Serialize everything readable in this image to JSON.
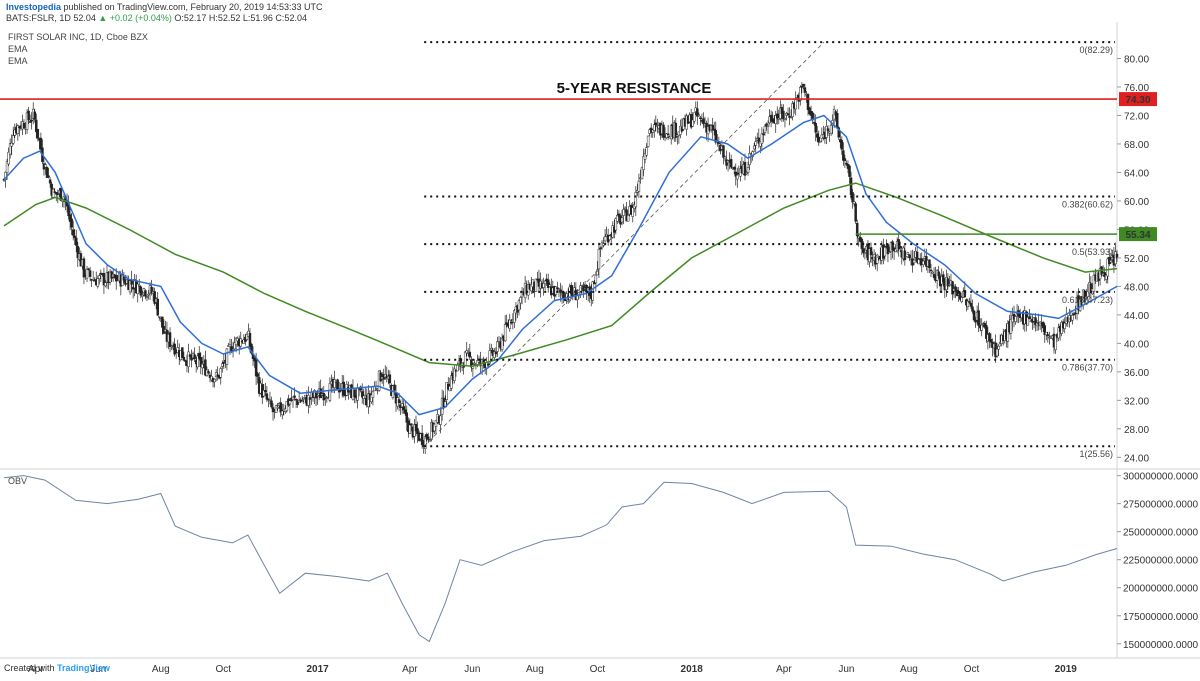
{
  "header": {
    "brand": "Investopedia",
    "published": "published on TradingView.com, February 20, 2019 14:53:33 UTC",
    "quote_prefix": "BATS:FSLR, 1D 52.04",
    "change": "▲ +0.02 (+0.04%)",
    "ohlc": "O:52.17 H:52.52 L:51.96 C:52.04"
  },
  "legend": {
    "symbol": "FIRST SOLAR INC, 1D, Cboe BZX",
    "ema1": "EMA",
    "ema2": "EMA",
    "obv": "OBV"
  },
  "annotation": "5-YEAR RESISTANCE",
  "footer": {
    "created": "Created with",
    "brand": "TradingView"
  },
  "colors": {
    "resistance": "#e02020",
    "ema_fast": "#2f6fd6",
    "ema_slow": "#3f8a22",
    "support_box": "#3f8a22",
    "candle": "#222222",
    "obv": "#6e84a6"
  },
  "chart_data": {
    "type": "line",
    "price_axis": {
      "range": [
        22.5,
        84
      ],
      "ticks": [
        24,
        28,
        32,
        36,
        40,
        44,
        48,
        52,
        56,
        60,
        64,
        68,
        72,
        76,
        80
      ]
    },
    "obv_axis": {
      "range": [
        140000000,
        305000000
      ],
      "ticks": [
        150000000,
        175000000,
        200000000,
        225000000,
        250000000,
        275000000,
        300000000
      ],
      "tick_labels": [
        "150000000.0000",
        "175000000.0000",
        "200000000.0000",
        "225000000.0000",
        "250000000.0000",
        "275000000.0000",
        "300000000.0000"
      ]
    },
    "x_axis": {
      "range": [
        "2016-03-01",
        "2019-02-20"
      ],
      "labels": [
        {
          "date": "2016-04-01",
          "text": "Apr"
        },
        {
          "date": "2016-06-01",
          "text": "Jun"
        },
        {
          "date": "2016-08-01",
          "text": "Aug"
        },
        {
          "date": "2016-10-01",
          "text": "Oct"
        },
        {
          "date": "2017-01-01",
          "text": "2017"
        },
        {
          "date": "2017-04-01",
          "text": "Apr"
        },
        {
          "date": "2017-06-01",
          "text": "Jun"
        },
        {
          "date": "2017-08-01",
          "text": "Aug"
        },
        {
          "date": "2017-10-01",
          "text": "Oct"
        },
        {
          "date": "2018-01-01",
          "text": "2018"
        },
        {
          "date": "2018-04-01",
          "text": "Apr"
        },
        {
          "date": "2018-06-01",
          "text": "Jun"
        },
        {
          "date": "2018-08-01",
          "text": "Aug"
        },
        {
          "date": "2018-10-01",
          "text": "Oct"
        },
        {
          "date": "2019-01-01",
          "text": "2019"
        }
      ]
    },
    "price_close": [
      [
        "2016-03-01",
        63
      ],
      [
        "2016-03-10",
        70
      ],
      [
        "2016-03-20",
        71
      ],
      [
        "2016-03-30",
        72
      ],
      [
        "2016-04-08",
        66
      ],
      [
        "2016-04-18",
        61
      ],
      [
        "2016-04-28",
        61
      ],
      [
        "2016-05-08",
        55
      ],
      [
        "2016-05-18",
        50
      ],
      [
        "2016-05-28",
        49
      ],
      [
        "2016-06-10",
        49
      ],
      [
        "2016-06-25",
        49
      ],
      [
        "2016-07-10",
        48
      ],
      [
        "2016-07-25",
        47
      ],
      [
        "2016-08-05",
        41
      ],
      [
        "2016-08-25",
        38
      ],
      [
        "2016-09-10",
        37
      ],
      [
        "2016-09-25",
        35
      ],
      [
        "2016-10-10",
        40
      ],
      [
        "2016-10-25",
        41
      ],
      [
        "2016-11-05",
        34
      ],
      [
        "2016-11-20",
        30
      ],
      [
        "2016-12-05",
        32
      ],
      [
        "2016-12-20",
        32
      ],
      [
        "2017-01-05",
        33
      ],
      [
        "2017-01-20",
        34
      ],
      [
        "2017-02-05",
        33
      ],
      [
        "2017-02-20",
        32
      ],
      [
        "2017-03-05",
        36
      ],
      [
        "2017-03-20",
        32
      ],
      [
        "2017-04-01",
        28
      ],
      [
        "2017-04-15",
        26.5
      ],
      [
        "2017-04-28",
        29
      ],
      [
        "2017-05-10",
        35
      ],
      [
        "2017-05-25",
        38
      ],
      [
        "2017-06-10",
        37
      ],
      [
        "2017-06-25",
        39
      ],
      [
        "2017-07-10",
        44
      ],
      [
        "2017-07-25",
        48
      ],
      [
        "2017-08-10",
        48
      ],
      [
        "2017-08-25",
        47
      ],
      [
        "2017-09-10",
        47
      ],
      [
        "2017-09-25",
        47
      ],
      [
        "2017-10-05",
        54
      ],
      [
        "2017-10-20",
        57
      ],
      [
        "2017-11-05",
        59
      ],
      [
        "2017-11-20",
        70
      ],
      [
        "2017-12-05",
        70
      ],
      [
        "2017-12-20",
        70
      ],
      [
        "2018-01-05",
        72
      ],
      [
        "2018-01-20",
        70
      ],
      [
        "2018-02-05",
        65
      ],
      [
        "2018-02-20",
        64
      ],
      [
        "2018-03-05",
        68
      ],
      [
        "2018-03-20",
        72
      ],
      [
        "2018-04-05",
        72
      ],
      [
        "2018-04-20",
        76
      ],
      [
        "2018-05-05",
        68
      ],
      [
        "2018-05-20",
        72
      ],
      [
        "2018-06-05",
        62
      ],
      [
        "2018-06-15",
        53
      ],
      [
        "2018-07-01",
        52
      ],
      [
        "2018-07-15",
        54
      ],
      [
        "2018-08-01",
        52
      ],
      [
        "2018-08-15",
        52
      ],
      [
        "2018-09-01",
        49
      ],
      [
        "2018-09-20",
        47
      ],
      [
        "2018-10-05",
        44
      ],
      [
        "2018-10-25",
        39
      ],
      [
        "2018-11-10",
        43
      ],
      [
        "2018-11-25",
        44
      ],
      [
        "2018-12-10",
        42
      ],
      [
        "2018-12-20",
        40
      ],
      [
        "2019-01-05",
        44
      ],
      [
        "2019-01-20",
        47
      ],
      [
        "2019-02-05",
        50
      ],
      [
        "2019-02-20",
        52.04
      ]
    ],
    "ema_fast": [
      [
        "2016-03-01",
        63
      ],
      [
        "2016-03-20",
        66
      ],
      [
        "2016-04-05",
        67
      ],
      [
        "2016-04-20",
        64
      ],
      [
        "2016-05-05",
        59
      ],
      [
        "2016-05-20",
        54
      ],
      [
        "2016-06-10",
        51
      ],
      [
        "2016-07-01",
        49
      ],
      [
        "2016-08-01",
        48
      ],
      [
        "2016-08-20",
        43
      ],
      [
        "2016-09-10",
        40
      ],
      [
        "2016-10-01",
        38.5
      ],
      [
        "2016-10-25",
        39.5
      ],
      [
        "2016-11-15",
        35.5
      ],
      [
        "2016-12-15",
        33
      ],
      [
        "2017-01-20",
        33.5
      ],
      [
        "2017-03-01",
        34
      ],
      [
        "2017-03-20",
        33
      ],
      [
        "2017-04-10",
        30
      ],
      [
        "2017-05-05",
        31
      ],
      [
        "2017-06-01",
        35
      ],
      [
        "2017-06-25",
        37.5
      ],
      [
        "2017-07-20",
        42
      ],
      [
        "2017-08-20",
        46
      ],
      [
        "2017-09-20",
        47
      ],
      [
        "2017-10-15",
        49.5
      ],
      [
        "2017-11-10",
        56
      ],
      [
        "2017-12-10",
        64
      ],
      [
        "2018-01-10",
        69
      ],
      [
        "2018-02-05",
        68
      ],
      [
        "2018-02-25",
        66
      ],
      [
        "2018-03-20",
        68
      ],
      [
        "2018-04-20",
        71
      ],
      [
        "2018-05-10",
        72
      ],
      [
        "2018-06-01",
        69
      ],
      [
        "2018-06-20",
        61
      ],
      [
        "2018-07-10",
        57
      ],
      [
        "2018-08-05",
        54
      ],
      [
        "2018-09-05",
        51
      ],
      [
        "2018-10-05",
        47
      ],
      [
        "2018-11-05",
        44.5
      ],
      [
        "2018-12-05",
        44
      ],
      [
        "2018-12-25",
        43.5
      ],
      [
        "2019-01-20",
        45.5
      ],
      [
        "2019-02-20",
        48
      ]
    ],
    "ema_slow": [
      [
        "2016-03-01",
        56.5
      ],
      [
        "2016-04-01",
        59.5
      ],
      [
        "2016-04-20",
        60.5
      ],
      [
        "2016-05-20",
        59
      ],
      [
        "2016-07-01",
        56
      ],
      [
        "2016-08-15",
        52.5
      ],
      [
        "2016-10-01",
        50
      ],
      [
        "2016-11-10",
        47
      ],
      [
        "2016-12-20",
        44.5
      ],
      [
        "2017-02-01",
        42
      ],
      [
        "2017-03-15",
        39.5
      ],
      [
        "2017-04-20",
        37.3
      ],
      [
        "2017-06-01",
        36.8
      ],
      [
        "2017-07-15",
        38.5
      ],
      [
        "2017-09-01",
        40.5
      ],
      [
        "2017-10-15",
        42.5
      ],
      [
        "2017-11-20",
        47
      ],
      [
        "2018-01-01",
        52
      ],
      [
        "2018-02-15",
        55.5
      ],
      [
        "2018-04-01",
        59
      ],
      [
        "2018-05-15",
        61.5
      ],
      [
        "2018-06-10",
        62.5
      ],
      [
        "2018-07-20",
        60.5
      ],
      [
        "2018-09-01",
        58
      ],
      [
        "2018-10-20",
        55
      ],
      [
        "2018-12-10",
        52
      ],
      [
        "2019-01-20",
        50
      ],
      [
        "2019-02-20",
        50.5
      ]
    ],
    "resistance": {
      "value": 74.3,
      "label": "74.30",
      "text": "5-YEAR RESISTANCE"
    },
    "support_level": {
      "value": 55.34,
      "label": "55.34",
      "from": "2018-06-10"
    },
    "fib_levels": [
      {
        "value": 82.29,
        "label": "0(82.29)"
      },
      {
        "value": 60.62,
        "label": "0.382(60.62)"
      },
      {
        "value": 53.93,
        "label": "0.5(53.93)"
      },
      {
        "value": 47.23,
        "label": "0.618(47.23)"
      },
      {
        "value": 37.7,
        "label": "0.786(37.70)"
      },
      {
        "value": 25.56,
        "label": "1(25.56)"
      }
    ],
    "trendline": [
      [
        "2017-04-15",
        25.56
      ],
      [
        "2018-05-10",
        82.29
      ]
    ],
    "obv": [
      [
        "2016-03-01",
        298000000
      ],
      [
        "2016-03-20",
        300000000
      ],
      [
        "2016-04-10",
        296000000
      ],
      [
        "2016-05-10",
        278000000
      ],
      [
        "2016-06-10",
        275000000
      ],
      [
        "2016-07-10",
        279000000
      ],
      [
        "2016-08-01",
        284000000
      ],
      [
        "2016-08-15",
        255000000
      ],
      [
        "2016-09-10",
        245000000
      ],
      [
        "2016-10-10",
        240000000
      ],
      [
        "2016-10-25",
        247000000
      ],
      [
        "2016-11-10",
        220000000
      ],
      [
        "2016-11-25",
        195000000
      ],
      [
        "2016-12-20",
        213000000
      ],
      [
        "2017-01-20",
        210000000
      ],
      [
        "2017-02-20",
        206000000
      ],
      [
        "2017-03-10",
        213000000
      ],
      [
        "2017-03-25",
        185000000
      ],
      [
        "2017-04-10",
        158000000
      ],
      [
        "2017-04-20",
        152000000
      ],
      [
        "2017-05-05",
        185000000
      ],
      [
        "2017-05-20",
        225000000
      ],
      [
        "2017-06-10",
        220000000
      ],
      [
        "2017-07-10",
        232000000
      ],
      [
        "2017-08-10",
        242000000
      ],
      [
        "2017-09-15",
        246000000
      ],
      [
        "2017-10-10",
        256000000
      ],
      [
        "2017-10-25",
        272000000
      ],
      [
        "2017-11-15",
        275000000
      ],
      [
        "2017-12-05",
        294000000
      ],
      [
        "2018-01-01",
        293000000
      ],
      [
        "2018-02-01",
        285000000
      ],
      [
        "2018-03-01",
        275000000
      ],
      [
        "2018-04-01",
        285000000
      ],
      [
        "2018-05-15",
        286000000
      ],
      [
        "2018-06-01",
        272000000
      ],
      [
        "2018-06-10",
        238000000
      ],
      [
        "2018-07-15",
        237000000
      ],
      [
        "2018-08-15",
        230000000
      ],
      [
        "2018-09-15",
        225000000
      ],
      [
        "2018-10-20",
        212000000
      ],
      [
        "2018-11-01",
        206000000
      ],
      [
        "2018-12-01",
        214000000
      ],
      [
        "2019-01-01",
        220000000
      ],
      [
        "2019-02-01",
        230000000
      ],
      [
        "2019-02-20",
        235000000
      ]
    ]
  }
}
